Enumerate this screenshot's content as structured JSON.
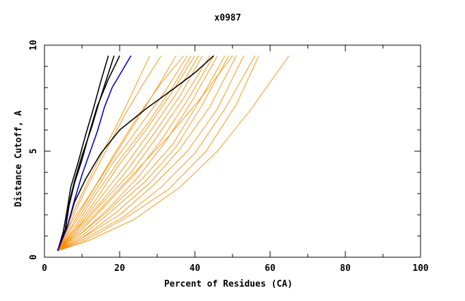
{
  "chart_data": {
    "type": "line",
    "title": "x0987",
    "xlabel": "Percent of Residues (CA)",
    "ylabel": "Distance Cutoff, A",
    "xlim": [
      0,
      100
    ],
    "ylim": [
      0,
      10
    ],
    "x_ticks": [
      0,
      20,
      40,
      60,
      80,
      100
    ],
    "y_ticks": [
      0,
      5,
      10
    ],
    "x_tick_labels": [
      "0",
      "20",
      "40",
      "60",
      "80",
      "100"
    ],
    "y_tick_labels": [
      "0",
      "5",
      "10"
    ],
    "colors": {
      "orange": "#ff8c00",
      "black": "#000000",
      "blue": "#0000cd",
      "frame": "#000000"
    },
    "series": [
      {
        "name": "orange-1",
        "color": "#ff8c00",
        "x": [
          3.5,
          6,
          10,
          15,
          20,
          24,
          28
        ],
        "y": [
          0.3,
          1.5,
          3.0,
          4.8,
          6.5,
          8.0,
          9.5
        ]
      },
      {
        "name": "orange-2",
        "color": "#ff8c00",
        "x": [
          3.5,
          7,
          12,
          18,
          24,
          30,
          35
        ],
        "y": [
          0.3,
          1.4,
          2.9,
          4.6,
          6.3,
          8.0,
          9.5
        ]
      },
      {
        "name": "orange-3",
        "color": "#ff8c00",
        "x": [
          3.5,
          7,
          12,
          18,
          25,
          32,
          38
        ],
        "y": [
          0.3,
          1.3,
          2.7,
          4.4,
          6.1,
          7.8,
          9.5
        ]
      },
      {
        "name": "orange-4",
        "color": "#ff8c00",
        "x": [
          3.5,
          8,
          14,
          20,
          27,
          34,
          40
        ],
        "y": [
          0.3,
          1.3,
          2.8,
          4.4,
          6.0,
          7.8,
          9.5
        ]
      },
      {
        "name": "orange-5",
        "color": "#ff8c00",
        "x": [
          3.5,
          8,
          14,
          21,
          28,
          35,
          41
        ],
        "y": [
          0.3,
          1.2,
          2.6,
          4.2,
          5.9,
          7.7,
          9.5
        ]
      },
      {
        "name": "orange-6",
        "color": "#ff8c00",
        "x": [
          3.5,
          8,
          15,
          22,
          29,
          36,
          42
        ],
        "y": [
          0.3,
          1.2,
          2.6,
          4.1,
          5.8,
          7.6,
          9.5
        ]
      },
      {
        "name": "orange-7",
        "color": "#ff8c00",
        "x": [
          3.5,
          8,
          15,
          23,
          30,
          37,
          44
        ],
        "y": [
          0.3,
          1.1,
          2.5,
          4.0,
          5.7,
          7.5,
          9.5
        ]
      },
      {
        "name": "orange-8",
        "color": "#ff8c00",
        "x": [
          3.5,
          9,
          16,
          24,
          31,
          38,
          45
        ],
        "y": [
          0.3,
          1.1,
          2.4,
          3.9,
          5.5,
          7.4,
          9.5
        ]
      },
      {
        "name": "orange-9",
        "color": "#ff8c00",
        "x": [
          3.5,
          9,
          17,
          25,
          32,
          39,
          46
        ],
        "y": [
          0.3,
          1.0,
          2.3,
          3.8,
          5.4,
          7.3,
          9.5
        ]
      },
      {
        "name": "orange-10",
        "color": "#ff8c00",
        "x": [
          3.5,
          9,
          17,
          26,
          34,
          41,
          48
        ],
        "y": [
          0.3,
          1.0,
          2.2,
          3.7,
          5.3,
          7.3,
          9.5
        ]
      },
      {
        "name": "orange-11",
        "color": "#ff8c00",
        "x": [
          3.5,
          10,
          18,
          27,
          35,
          42,
          49
        ],
        "y": [
          0.3,
          1.0,
          2.2,
          3.6,
          5.2,
          7.2,
          9.5
        ]
      },
      {
        "name": "orange-12",
        "color": "#ff8c00",
        "x": [
          3.5,
          10,
          19,
          28,
          36,
          44,
          51
        ],
        "y": [
          0.3,
          0.9,
          2.1,
          3.5,
          5.1,
          7.1,
          9.5
        ]
      },
      {
        "name": "orange-13",
        "color": "#ff8c00",
        "x": [
          3.5,
          10,
          20,
          29,
          38,
          46,
          53
        ],
        "y": [
          0.3,
          0.9,
          2.0,
          3.4,
          5.0,
          7.0,
          9.5
        ]
      },
      {
        "name": "orange-14",
        "color": "#ff8c00",
        "x": [
          3.5,
          11,
          21,
          31,
          40,
          48,
          56
        ],
        "y": [
          0.3,
          0.9,
          1.9,
          3.3,
          4.9,
          7.0,
          9.5
        ]
      },
      {
        "name": "orange-15",
        "color": "#ff8c00",
        "x": [
          3.5,
          11,
          22,
          33,
          43,
          51,
          57
        ],
        "y": [
          0.3,
          0.8,
          1.9,
          3.2,
          5.0,
          7.2,
          9.5
        ]
      },
      {
        "name": "orange-16",
        "color": "#ff8c00",
        "x": [
          3.5,
          12,
          24,
          36,
          46,
          55,
          65
        ],
        "y": [
          0.3,
          0.8,
          1.8,
          3.3,
          5.0,
          7.0,
          9.5
        ]
      },
      {
        "name": "orange-17",
        "color": "#ff8c00",
        "x": [
          3.5,
          7,
          13,
          19,
          25,
          31,
          37
        ],
        "y": [
          0.3,
          1.6,
          3.2,
          5.0,
          6.7,
          8.2,
          9.5
        ]
      },
      {
        "name": "orange-18",
        "color": "#ff8c00",
        "x": [
          3.5,
          7,
          11,
          16,
          21,
          26,
          31
        ],
        "y": [
          0.3,
          1.7,
          3.2,
          4.9,
          6.6,
          8.1,
          9.5
        ]
      },
      {
        "name": "orange-19",
        "color": "#ff8c00",
        "x": [
          3.5,
          8,
          13,
          20,
          27,
          34,
          39
        ],
        "y": [
          0.3,
          1.4,
          2.8,
          4.6,
          6.2,
          8.0,
          9.5
        ]
      },
      {
        "name": "orange-20",
        "color": "#ff8c00",
        "x": [
          3.5,
          9,
          16,
          24,
          33,
          42,
          50
        ],
        "y": [
          0.3,
          1.2,
          2.5,
          4.0,
          5.7,
          7.6,
          9.5
        ]
      },
      {
        "name": "black-1",
        "color": "#000000",
        "x": [
          3.5,
          5,
          6,
          7,
          9,
          11,
          13,
          15,
          17
        ],
        "y": [
          0.3,
          1.2,
          2.2,
          3.3,
          4.5,
          5.8,
          7.0,
          8.3,
          9.5
        ]
      },
      {
        "name": "black-2",
        "color": "#000000",
        "x": [
          3.5,
          5.5,
          6.5,
          8,
          10,
          12.5,
          14.5,
          16.5,
          18.5
        ],
        "y": [
          0.3,
          1.3,
          2.5,
          3.6,
          4.8,
          6.1,
          7.3,
          8.4,
          9.5
        ]
      },
      {
        "name": "black-3",
        "color": "#000000",
        "x": [
          3.5,
          5.5,
          6.5,
          8,
          10,
          12,
          14,
          17,
          20
        ],
        "y": [
          0.3,
          1.2,
          2.4,
          3.5,
          4.6,
          5.9,
          7.1,
          8.4,
          9.5
        ]
      },
      {
        "name": "black-4",
        "color": "#000000",
        "x": [
          3.5,
          6,
          8,
          11,
          15,
          20,
          27,
          34,
          40,
          45
        ],
        "y": [
          0.3,
          1.4,
          2.6,
          3.7,
          4.9,
          6.0,
          7.0,
          7.9,
          8.7,
          9.5
        ]
      },
      {
        "name": "blue-1",
        "color": "#0000cd",
        "x": [
          3.5,
          6,
          8,
          10,
          12,
          14,
          16,
          18,
          21,
          23
        ],
        "y": [
          0.3,
          1.4,
          2.7,
          3.9,
          4.9,
          5.9,
          7.1,
          8.0,
          8.9,
          9.5
        ]
      }
    ]
  }
}
